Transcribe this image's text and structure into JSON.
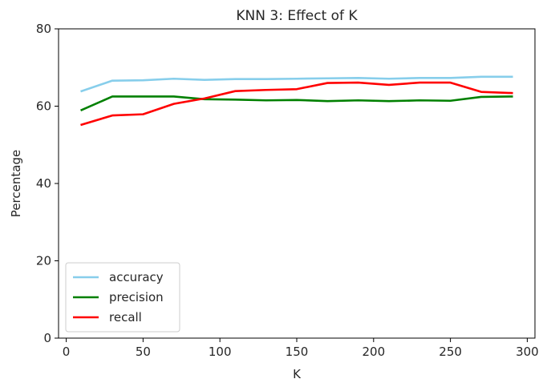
{
  "chart_data": {
    "type": "line",
    "title": "KNN 3: Effect of K",
    "xlabel": "K",
    "ylabel": "Percentage",
    "xlim": [
      -5,
      305
    ],
    "ylim": [
      0,
      80
    ],
    "xticks": [
      0,
      50,
      100,
      150,
      200,
      250,
      300
    ],
    "yticks": [
      0,
      20,
      40,
      60,
      80
    ],
    "grid": false,
    "legend_position": "lower-left",
    "x": [
      10,
      30,
      50,
      70,
      90,
      110,
      130,
      150,
      170,
      190,
      210,
      230,
      250,
      270,
      290
    ],
    "series": [
      {
        "name": "accuracy",
        "color": "#87ceeb",
        "values": [
          63.9,
          66.6,
          66.7,
          67.1,
          66.8,
          67.0,
          67.0,
          67.1,
          67.2,
          67.3,
          67.1,
          67.3,
          67.3,
          67.6,
          67.6
        ]
      },
      {
        "name": "precision",
        "color": "#008000",
        "values": [
          59.0,
          62.5,
          62.5,
          62.5,
          61.8,
          61.7,
          61.5,
          61.6,
          61.3,
          61.5,
          61.3,
          61.5,
          61.4,
          62.4,
          62.5
        ]
      },
      {
        "name": "recall",
        "color": "#ff0000",
        "values": [
          55.2,
          57.6,
          57.9,
          60.6,
          62.0,
          63.9,
          64.2,
          64.4,
          66.0,
          66.1,
          65.5,
          66.1,
          66.1,
          63.7,
          63.4
        ]
      }
    ]
  }
}
